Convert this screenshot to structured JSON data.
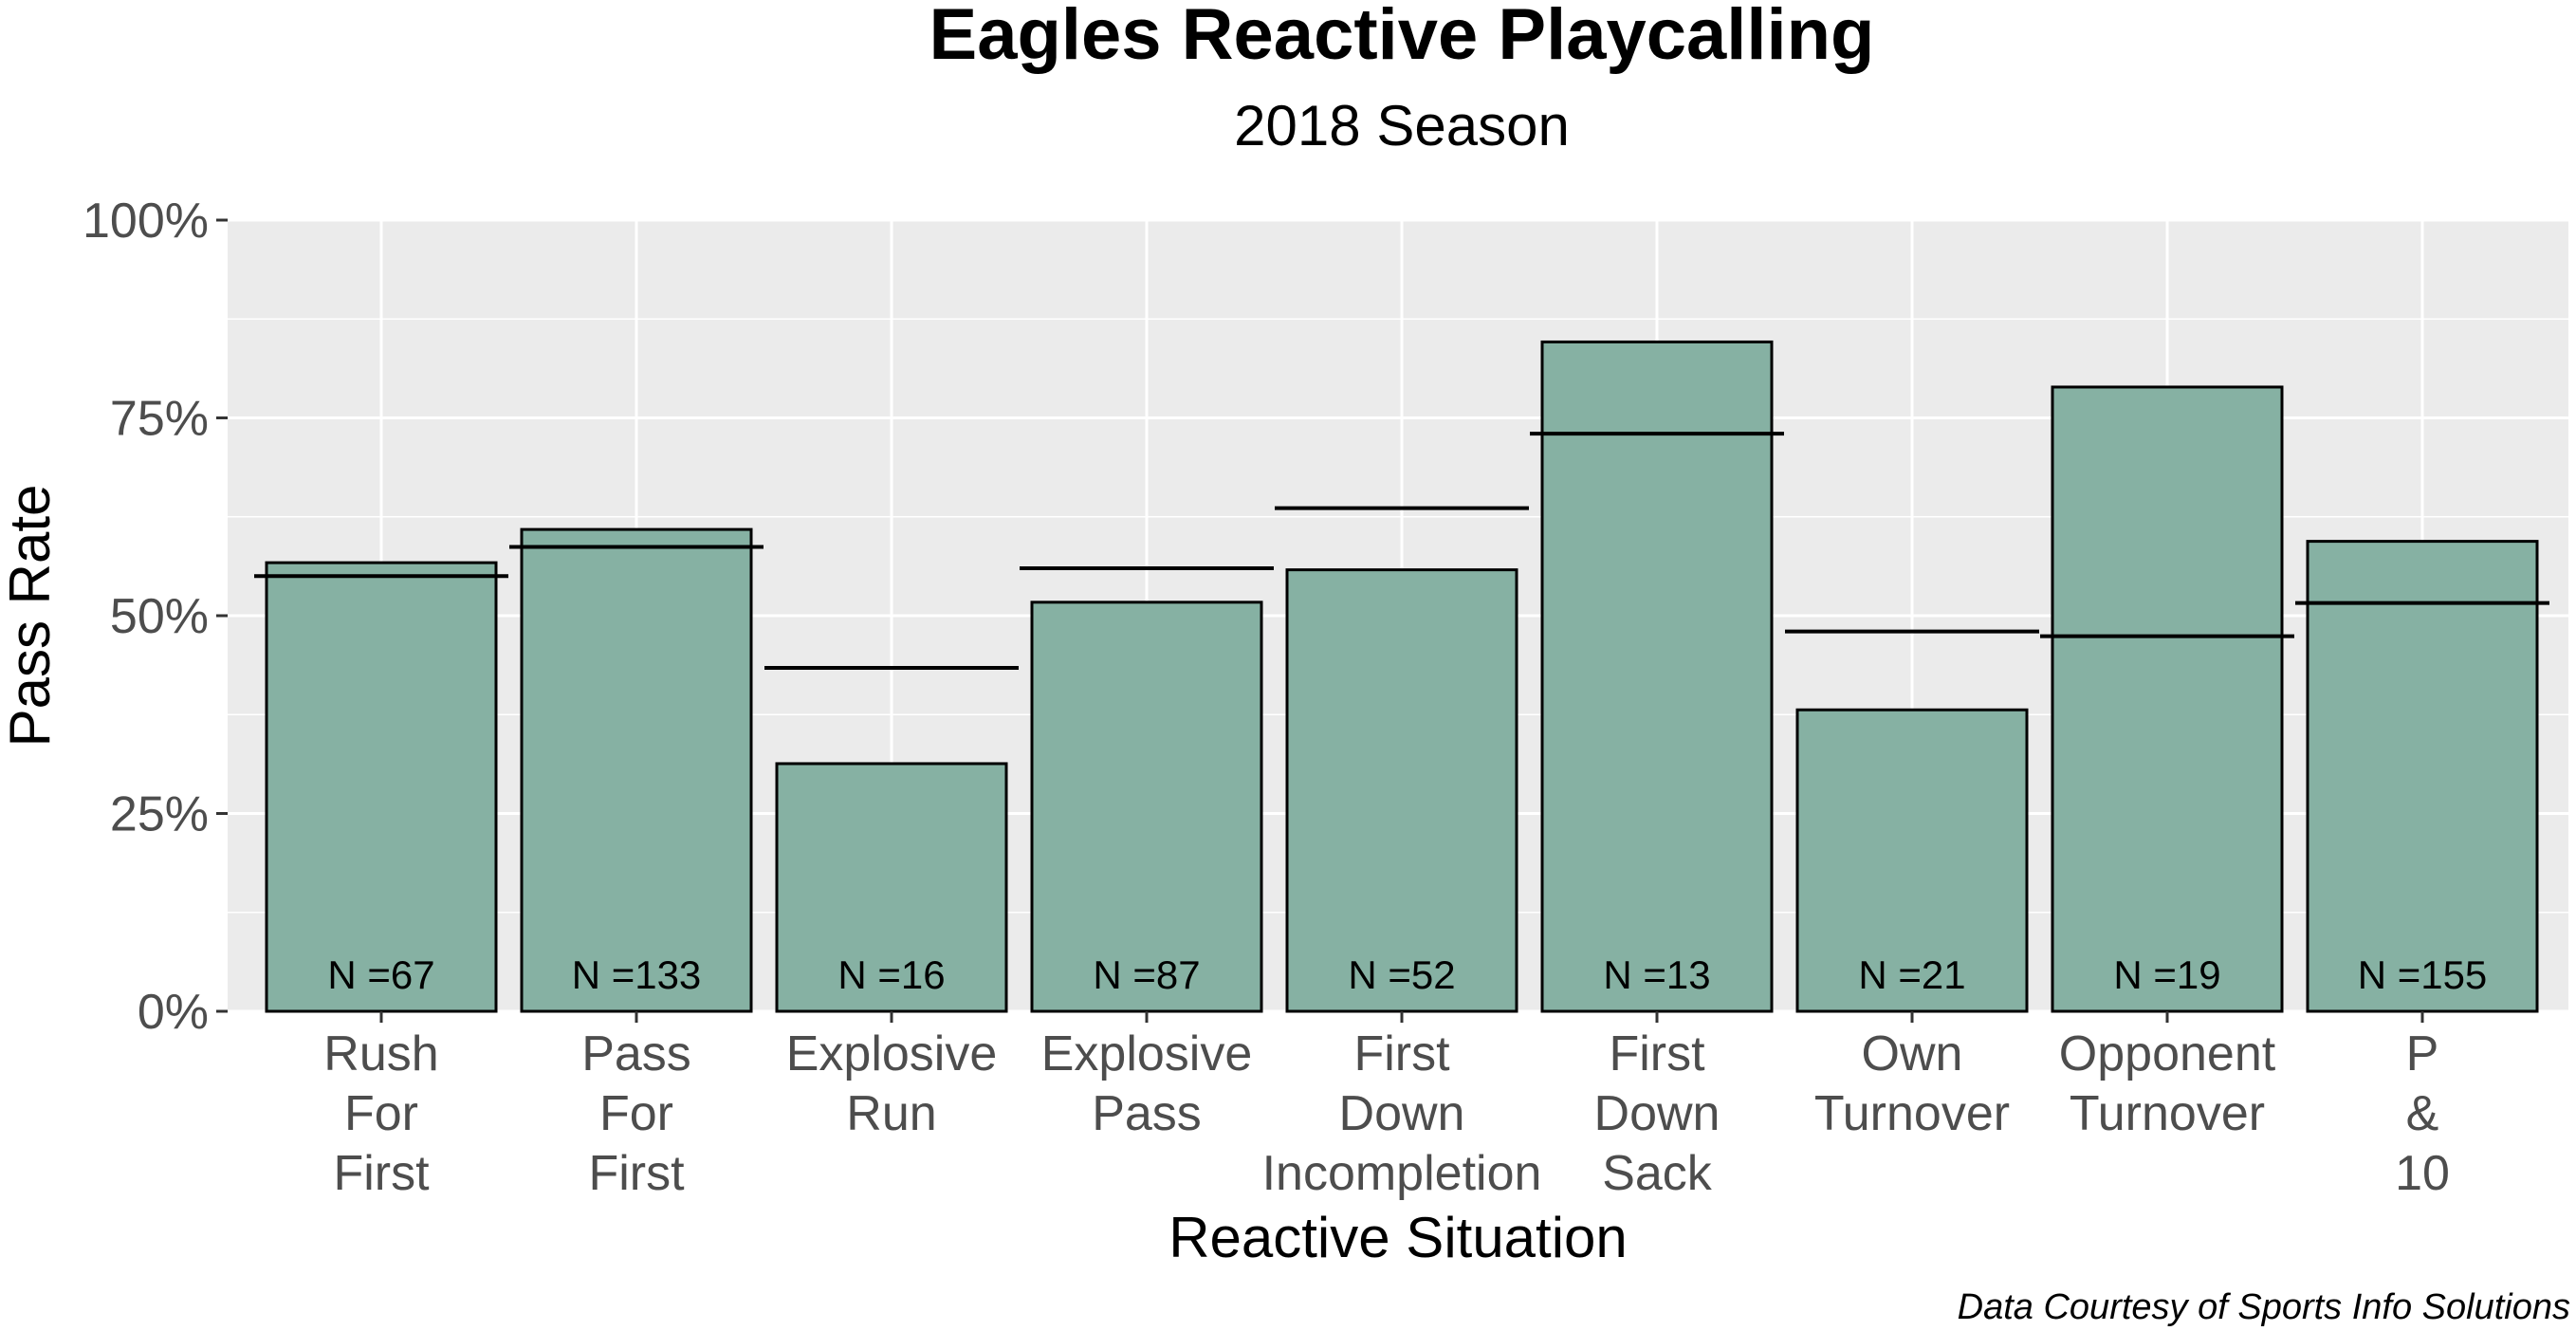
{
  "chart_data": {
    "type": "bar",
    "title": "Eagles Reactive Playcalling",
    "subtitle": "2018 Season",
    "xlabel": "Reactive Situation",
    "ylabel": "Pass Rate",
    "caption": "Data Courtesy of Sports Info Solutions",
    "ylim": [
      0,
      1
    ],
    "y_ticks": [
      0,
      0.25,
      0.5,
      0.75,
      1
    ],
    "y_tick_labels": [
      "0%",
      "25%",
      "50%",
      "75%",
      "100%"
    ],
    "grid": true,
    "categories": [
      [
        "Rush",
        "For",
        "First"
      ],
      [
        "Pass",
        "For",
        "First"
      ],
      [
        "Explosive",
        "Run"
      ],
      [
        "Explosive",
        "Pass"
      ],
      [
        "First",
        "Down",
        "Incompletion"
      ],
      [
        "First",
        "Down",
        "Sack"
      ],
      [
        "Own",
        "Turnover"
      ],
      [
        "Opponent",
        "Turnover"
      ],
      [
        "P",
        "&",
        "10"
      ]
    ],
    "values": [
      0.567,
      0.609,
      0.313,
      0.517,
      0.558,
      0.846,
      0.381,
      0.789,
      0.594
    ],
    "reference_values": [
      0.55,
      0.587,
      0.434,
      0.56,
      0.636,
      0.73,
      0.48,
      0.474,
      0.516
    ],
    "n_labels": [
      "N =67",
      "N =133",
      "N =16",
      "N =87",
      "N =52",
      "N =13",
      "N =21",
      "N =19",
      "N =155"
    ],
    "colors": {
      "bar_fill": "#86b1a3",
      "bar_stroke": "#000000",
      "panel_bg": "#ebebeb",
      "grid": "#ffffff",
      "reference_line": "#000000"
    }
  }
}
